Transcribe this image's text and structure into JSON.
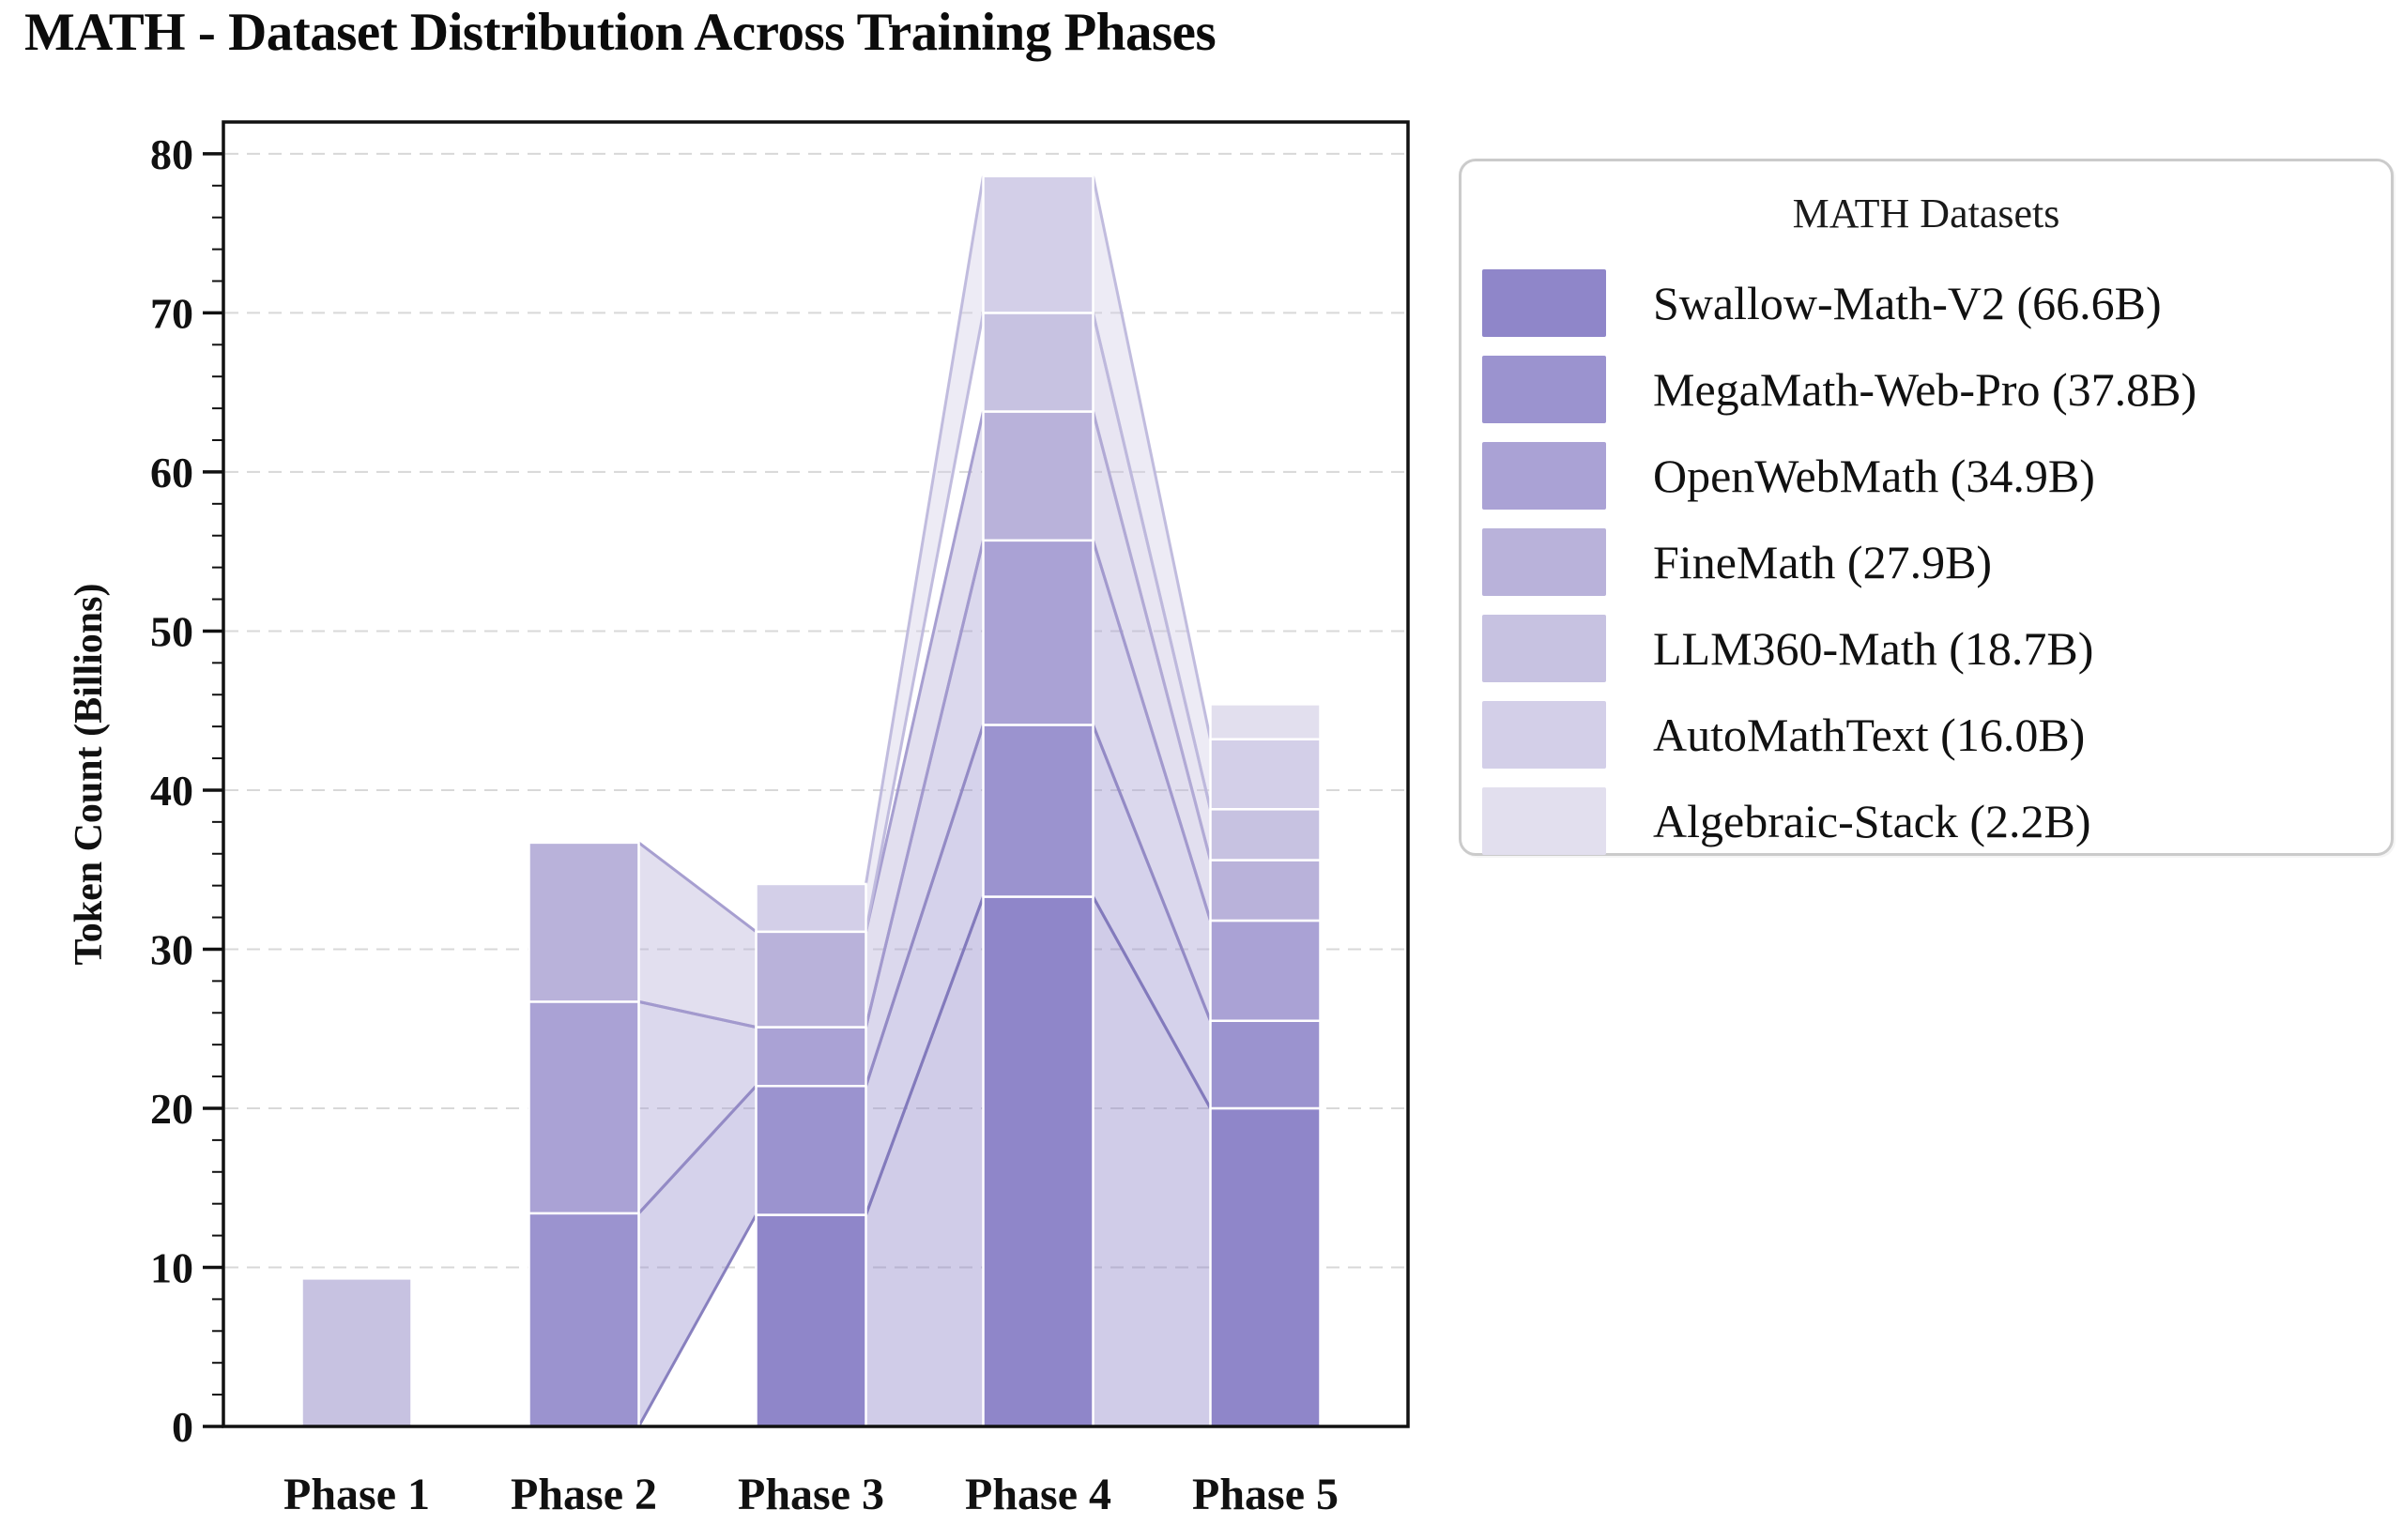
{
  "title": "MATH - Dataset Distribution Across Training Phases",
  "axes": {
    "y_label": "Token Count (Billions)",
    "y_ticks": [
      "0",
      "10",
      "20",
      "30",
      "40",
      "50",
      "60",
      "70",
      "80"
    ],
    "x_labels": [
      "Phase 1",
      "Phase 2",
      "Phase 3",
      "Phase 4",
      "Phase 5"
    ]
  },
  "legend": {
    "title": "MATH Datasets",
    "entries": [
      {
        "label": "Swallow-Math-V2 (66.6B)",
        "color": "#8f86c9"
      },
      {
        "label": "MegaMath-Web-Pro (37.8B)",
        "color": "#9b93cf"
      },
      {
        "label": "OpenWebMath (34.9B)",
        "color": "#aaa2d5"
      },
      {
        "label": "FineMath (27.9B)",
        "color": "#b9b2da"
      },
      {
        "label": "LLM360-Math (18.7B)",
        "color": "#c7c2e1"
      },
      {
        "label": "AutoMathText (16.0B)",
        "color": "#d3cfe8"
      },
      {
        "label": "Algebraic-Stack (2.2B)",
        "color": "#e2dfee"
      }
    ]
  },
  "chart_data": {
    "type": "bar",
    "variant": "stacked-bars-with-flow-ribbons",
    "title": "MATH - Dataset Distribution Across Training Phases",
    "xlabel": "",
    "ylabel": "Token Count (Billions)",
    "ylim": [
      0,
      82
    ],
    "y_tick_step": 10,
    "grid": "horizontal-dashed",
    "legend_position": "outside-upper-right",
    "categories": [
      "Phase 1",
      "Phase 2",
      "Phase 3",
      "Phase 4",
      "Phase 5"
    ],
    "series": [
      {
        "name": "Swallow-Math-V2",
        "total": "66.6B",
        "color": "#8f86c9",
        "edge_color": "#766cb4",
        "values": [
          0,
          0,
          13.3,
          33.3,
          20.0
        ]
      },
      {
        "name": "MegaMath-Web-Pro",
        "total": "37.8B",
        "color": "#9b93cf",
        "edge_color": "#837abc",
        "values": [
          0,
          13.4,
          8.1,
          10.8,
          5.5
        ]
      },
      {
        "name": "OpenWebMath",
        "total": "34.9B",
        "color": "#aaa2d5",
        "edge_color": "#938bc5",
        "values": [
          0,
          13.3,
          3.7,
          11.6,
          6.3
        ]
      },
      {
        "name": "FineMath",
        "total": "27.9B",
        "color": "#b9b2da",
        "edge_color": "#a29ace",
        "values": [
          0,
          10.0,
          6.0,
          8.1,
          3.8
        ]
      },
      {
        "name": "LLM360-Math",
        "total": "18.7B",
        "color": "#c7c2e1",
        "edge_color": "#b1aad5",
        "values": [
          9.3,
          0,
          0,
          6.2,
          3.2
        ]
      },
      {
        "name": "AutoMathText",
        "total": "16.0B",
        "color": "#d3cfe8",
        "edge_color": "#beb8dc",
        "values": [
          0,
          0,
          3.0,
          8.6,
          4.4
        ]
      },
      {
        "name": "Algebraic-Stack",
        "total": "2.2B",
        "color": "#e2dfee",
        "edge_color": "#ccc8e2",
        "values": [
          0,
          0,
          0,
          0,
          2.2
        ]
      }
    ],
    "flows": "same dataset connected between adjacent phases when present in both",
    "phase_totals": [
      9.3,
      36.7,
      34.1,
      78.6,
      45.3
    ]
  },
  "styles": {
    "background": "#ffffff",
    "grid_color": "#d8d8d8",
    "axis_color": "#111111",
    "tick_label_color": "#111111",
    "bar_edge_color": "#ffffff",
    "flow_fill_opacity": 0.42,
    "legend_border_color": "#cbcbcb"
  }
}
